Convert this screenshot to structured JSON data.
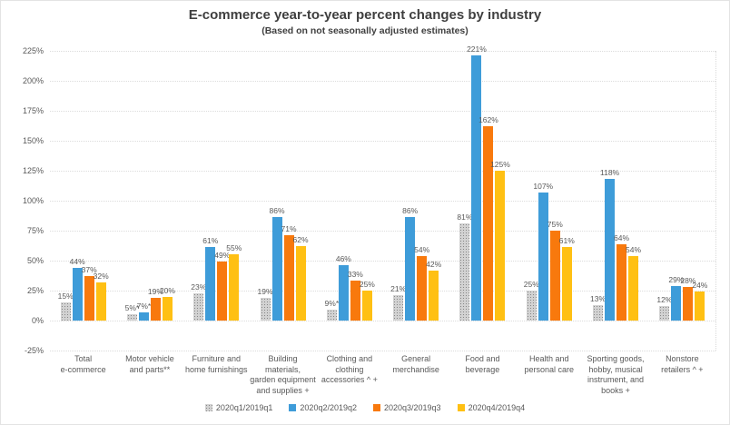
{
  "chart_data": {
    "type": "bar",
    "title": "E-commerce year-to-year percent changes by industry",
    "subtitle": "(Based on not seasonally adjusted estimates)",
    "ylabel": "",
    "xlabel": "",
    "ylim": [
      -25,
      225
    ],
    "ytick_step": 25,
    "ytick_suffix": "%",
    "grid": true,
    "legend_position": "bottom",
    "categories": [
      "Total\ne-commerce",
      "Motor vehicle\nand parts**",
      "Furniture and\nhome furnishings",
      "Building materials,\ngarden equipment\nand supplies +",
      "Clothing and\nclothing\naccessories ^ +",
      "General\nmerchandise",
      "Food and\nbeverage",
      "Health and\npersonal care",
      "Sporting goods,\nhobby, musical\ninstrument, and\nbooks +",
      "Nonstore\nretailers ^ +"
    ],
    "series": [
      {
        "name": "2020q1/2019q1",
        "color": "#a6a6a6",
        "pattern": "dots",
        "values": [
          15,
          5,
          23,
          19,
          9,
          21,
          81,
          25,
          13,
          12
        ],
        "labels": [
          "15%",
          "5%*",
          "23%",
          "19%",
          "9%*",
          "21%",
          "81%",
          "25%",
          "13%",
          "12%"
        ]
      },
      {
        "name": "2020q2/2019q2",
        "color": "#3e9cd9",
        "pattern": "solid",
        "values": [
          44,
          7,
          61,
          86,
          46,
          86,
          221,
          107,
          118,
          29
        ],
        "labels": [
          "44%",
          "7%*",
          "61%",
          "86%",
          "46%",
          "86%",
          "221%",
          "107%",
          "118%",
          "29%"
        ]
      },
      {
        "name": "2020q3/2019q3",
        "color": "#f8790d",
        "pattern": "solid",
        "values": [
          37,
          19,
          49,
          71,
          33,
          54,
          162,
          75,
          64,
          28
        ],
        "labels": [
          "37%",
          "19%",
          "49%",
          "71%",
          "33%",
          "54%",
          "162%",
          "75%",
          "64%",
          "28%"
        ]
      },
      {
        "name": "2020q4/2019q4",
        "color": "#ffc013",
        "pattern": "solid",
        "values": [
          32,
          20,
          55,
          62,
          25,
          42,
          125,
          61,
          54,
          24
        ],
        "labels": [
          "32%",
          "20%",
          "55%",
          "62%",
          "25%",
          "42%",
          "125%",
          "61%",
          "54%",
          "24%"
        ]
      }
    ]
  }
}
